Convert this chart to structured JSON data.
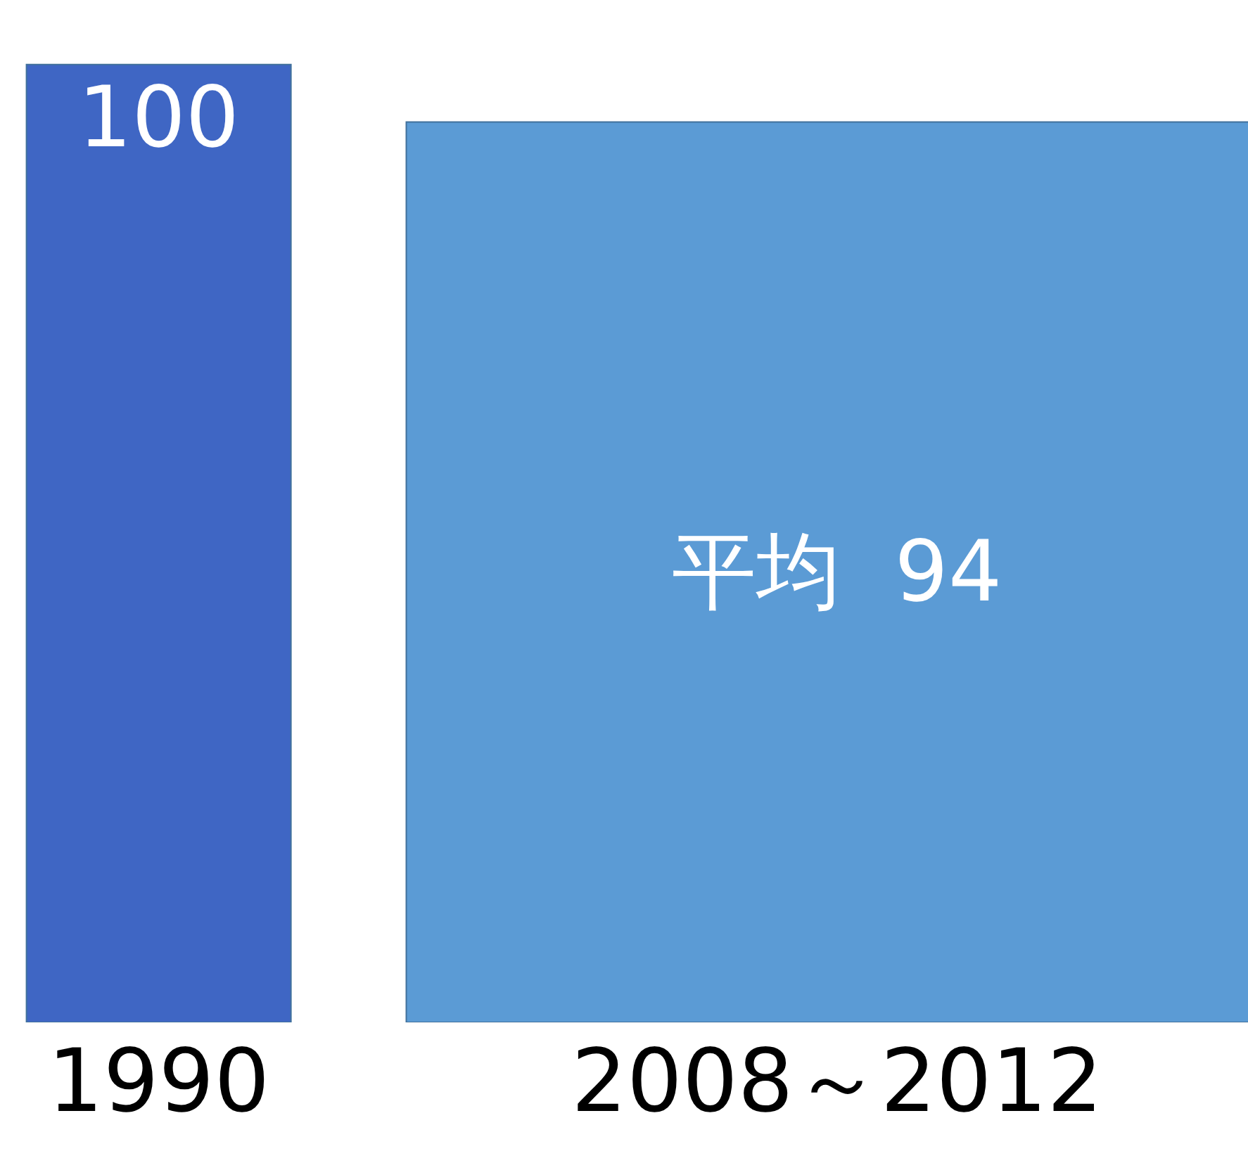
{
  "chart_data": {
    "type": "bar",
    "categories": [
      "1990",
      "2008～2012"
    ],
    "values": [
      100,
      94
    ],
    "value_labels": [
      "100",
      "平均  94"
    ],
    "colors": [
      "#3f66c4",
      "#5b9bd5"
    ],
    "legend": false
  }
}
